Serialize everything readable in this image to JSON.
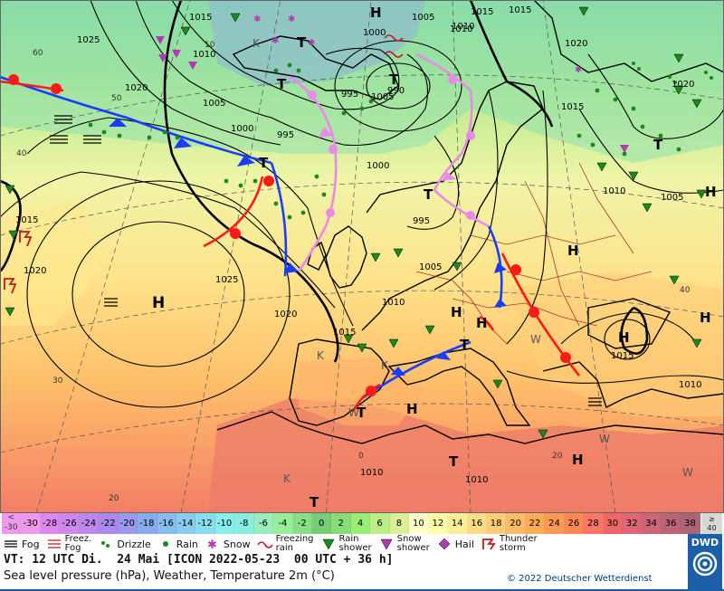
{
  "map": {
    "pressure_labels": [
      "1015",
      "1025",
      "1020",
      "1010",
      "1005",
      "995",
      "1000",
      "1020",
      "1015",
      "1010",
      "1005",
      "1000",
      "995",
      "990",
      "995",
      "1000",
      "1005",
      "1010",
      "1015",
      "1020",
      "1025",
      "1020",
      "1015",
      "1010",
      "1005",
      "1010",
      "1010",
      "1010",
      "1015",
      "1010",
      "1005",
      "1015",
      "1020",
      "1015"
    ],
    "pressure_center_labels": [
      "H",
      "H",
      "H",
      "H",
      "H",
      "H",
      "H",
      "H",
      "H",
      "H",
      "T",
      "T",
      "T",
      "T",
      "T",
      "T",
      "T",
      "T",
      "T",
      "T",
      "K",
      "K",
      "K",
      "K",
      "W",
      "W",
      "W",
      "W"
    ],
    "temp_labels": [
      "60",
      "50",
      "40",
      "40",
      "30",
      "20",
      "0",
      "10",
      "20"
    ]
  },
  "scale": {
    "first": [
      "<",
      "-30"
    ],
    "values": [
      "-30",
      "-28",
      "-26",
      "-24",
      "-22",
      "-20",
      "-18",
      "-16",
      "-14",
      "-12",
      "-10",
      "-8",
      "-6",
      "-4",
      "-2",
      "0",
      "2",
      "4",
      "6",
      "8",
      "10",
      "12",
      "14",
      "16",
      "18",
      "20",
      "22",
      "24",
      "26",
      "28",
      "30",
      "32",
      "34",
      "36",
      "38"
    ],
    "last": [
      "≥",
      "40"
    ],
    "colors": [
      "#ee99ee",
      "#dd88ee",
      "#cc88ee",
      "#bb88ee",
      "#aa88ee",
      "#9999ee",
      "#88aaee",
      "#88bbee",
      "#88ccee",
      "#88ddee",
      "#88eeee",
      "#88eedd",
      "#99eebb",
      "#99ee99",
      "#88dd88",
      "#77cc77",
      "#88dd77",
      "#99ee77",
      "#bbee88",
      "#ddee99",
      "#ffffcc",
      "#ffffaa",
      "#ffee99",
      "#ffdd88",
      "#ffcc77",
      "#ffbb66",
      "#ffaa55",
      "#ff9955",
      "#ff8855",
      "#ff7766",
      "#ee6666",
      "#dd6677",
      "#cc6677",
      "#bb6677",
      "#aa6677"
    ]
  },
  "legend": [
    {
      "icon": "fog-icon",
      "label": "Fog"
    },
    {
      "icon": "freezing-fog-icon",
      "label": "Freez.\nFog"
    },
    {
      "icon": "drizzle-icon",
      "label": "Drizzle"
    },
    {
      "icon": "rain-icon",
      "label": "Rain"
    },
    {
      "icon": "snow-icon",
      "label": "Snow"
    },
    {
      "icon": "freezing-rain-icon",
      "label": "Freezing\nrain"
    },
    {
      "icon": "rain-shower-icon",
      "label": "Rain\nshower"
    },
    {
      "icon": "snow-shower-icon",
      "label": "Snow\nshower"
    },
    {
      "icon": "hail-icon",
      "label": "Hail"
    },
    {
      "icon": "thunderstorm-icon",
      "label": "Thunder\nstorm"
    }
  ],
  "info": {
    "line1": "VT: 12 UTC Di.  24 Mai [ICON 2022-05-23  00 UTC + 36 h]",
    "line2": "Sea level pressure (hPa), Weather, Temperature 2m (°C)",
    "copyright": "© 2022 Deutscher Wetterdienst",
    "logo": "DWD"
  },
  "colors": {
    "cold_front": "#1a3cff",
    "warm_front": "#ff1a1a",
    "occlusion": "#e98ae8",
    "isobar": "#000000",
    "coast": "#000000",
    "border": "#b03030"
  }
}
